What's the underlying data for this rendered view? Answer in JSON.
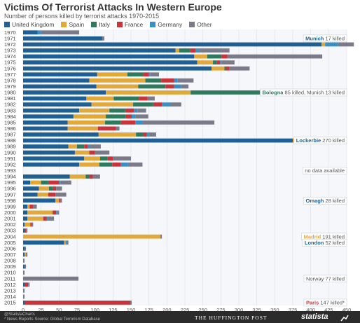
{
  "header": {
    "title": "Victims Of Terrorist Attacks In Western Europe",
    "subtitle": "Number of persons killed by terrorist attacks 1970-2015"
  },
  "legend": [
    {
      "name": "United Kingdom",
      "color": "#1f5f93"
    },
    {
      "name": "Spain",
      "color": "#e3a83a"
    },
    {
      "name": "Italy",
      "color": "#2f7a5c"
    },
    {
      "name": "France",
      "color": "#c8343a"
    },
    {
      "name": "Germany",
      "color": "#3a8fc4"
    },
    {
      "name": "Other",
      "color": "#7a7a88"
    }
  ],
  "footer": {
    "notes_line1": "@StatistaCharts",
    "notes_line2": "* News Reports   Source: Global Terrorism Database",
    "publisher": "THE HUFFINGTON POST",
    "brand": "statista"
  },
  "chart_data": {
    "type": "bar",
    "orientation": "horizontal",
    "stacked": true,
    "title": "Victims Of Terrorist Attacks In Western Europe",
    "subtitle": "Number of persons killed by terrorist attacks 1970-2015",
    "xlim": [
      0,
      450
    ],
    "xticks": [
      0,
      25,
      50,
      75,
      100,
      125,
      150,
      175,
      200,
      225,
      250,
      275,
      300,
      325,
      350,
      375,
      400,
      425,
      450
    ],
    "grid": true,
    "legend_position": "top",
    "categories": [
      "1970",
      "1971",
      "1972",
      "1973",
      "1974",
      "1975",
      "1976",
      "1977",
      "1978",
      "1979",
      "1980",
      "1981",
      "1982",
      "1983",
      "1984",
      "1985",
      "1986",
      "1987",
      "1988",
      "1989",
      "1990",
      "1991",
      "1992",
      "1993",
      "1994",
      "1995",
      "1996",
      "1997",
      "1998",
      "1999",
      "2000",
      "2001",
      "2002",
      "2003",
      "2004",
      "2005",
      "2006",
      "2007",
      "2008",
      "2009",
      "2010",
      "2011",
      "2012",
      "2013",
      "2014",
      "2015"
    ],
    "series": [
      {
        "name": "United Kingdom",
        "values": [
          20,
          110,
          415,
          212,
          238,
          242,
          262,
          103,
          92,
          102,
          115,
          88,
          95,
          78,
          70,
          62,
          62,
          105,
          375,
          63,
          72,
          85,
          78,
          0,
          65,
          10,
          22,
          20,
          45,
          6,
          6,
          6,
          2,
          2,
          0,
          57,
          2,
          2,
          0,
          2,
          0,
          0,
          2,
          0,
          0,
          2
        ]
      },
      {
        "name": "Spain",
        "values": [
          0,
          0,
          5,
          5,
          18,
          22,
          18,
          42,
          78,
          58,
          118,
          38,
          58,
          42,
          45,
          52,
          42,
          52,
          22,
          12,
          20,
          22,
          28,
          0,
          22,
          15,
          14,
          15,
          5,
          3,
          35,
          22,
          8,
          0,
          191,
          2,
          0,
          2,
          0,
          0,
          0,
          0,
          0,
          0,
          0,
          0
        ]
      },
      {
        "name": "Italy",
        "values": [
          0,
          0,
          0,
          15,
          20,
          5,
          2,
          22,
          22,
          38,
          100,
          35,
          28,
          22,
          28,
          22,
          0,
          10,
          0,
          10,
          0,
          10,
          18,
          0,
          5,
          10,
          5,
          0,
          0,
          0,
          0,
          0,
          0,
          0,
          0,
          0,
          0,
          0,
          0,
          0,
          0,
          0,
          0,
          0,
          0,
          0
        ]
      },
      {
        "name": "France",
        "values": [
          0,
          0,
          0,
          8,
          8,
          5,
          5,
          8,
          18,
          12,
          18,
          12,
          12,
          12,
          8,
          20,
          25,
          5,
          5,
          5,
          8,
          8,
          12,
          0,
          5,
          15,
          5,
          10,
          2,
          5,
          5,
          5,
          2,
          2,
          0,
          0,
          0,
          0,
          0,
          0,
          0,
          0,
          5,
          0,
          0,
          147
        ]
      },
      {
        "name": "Germany",
        "values": [
          5,
          0,
          18,
          5,
          0,
          2,
          0,
          2,
          5,
          10,
          12,
          0,
          12,
          5,
          5,
          10,
          0,
          3,
          0,
          3,
          0,
          0,
          10,
          0,
          0,
          2,
          0,
          0,
          0,
          0,
          2,
          2,
          0,
          0,
          0,
          2,
          0,
          0,
          0,
          0,
          0,
          0,
          0,
          0,
          0,
          0
        ]
      },
      {
        "name": "Other",
        "values": [
          53,
          3,
          22,
          42,
          132,
          18,
          28,
          12,
          22,
          10,
          43,
          10,
          15,
          12,
          18,
          100,
          5,
          10,
          25,
          15,
          20,
          25,
          20,
          0,
          10,
          15,
          8,
          15,
          2,
          5,
          2,
          8,
          2,
          2,
          2,
          2,
          2,
          2,
          2,
          2,
          2,
          77,
          2,
          2,
          2,
          2
        ]
      }
    ],
    "annotations": [
      {
        "year": "1971",
        "city": "Munich",
        "text": " 17 killed",
        "color": "#1f5f93"
      },
      {
        "year": "1980",
        "city": "Bologna",
        "text": " 85 killed, Munich 13 killed",
        "color": "#2f7a5c"
      },
      {
        "year": "1988",
        "city": "Lockerbie",
        "text": " 270 killed",
        "color": "#1f5f93"
      },
      {
        "year": "1993",
        "city": "",
        "text": "no data available",
        "color": "#555555"
      },
      {
        "year": "1998",
        "city": "Omagh",
        "text": " 28 killed",
        "color": "#1f5f93"
      },
      {
        "year": "2004",
        "city": "Madrid",
        "text": " 191 killed",
        "color": "#e3a83a"
      },
      {
        "year": "2005",
        "city": "London",
        "text": " 52 killed",
        "color": "#1f5f93"
      },
      {
        "year": "2011",
        "city": "",
        "text": "Norway 77 killed",
        "color": "#555555"
      },
      {
        "year": "2015",
        "city": "Paris",
        "text": " 147 killed*",
        "color": "#c8343a"
      }
    ]
  }
}
